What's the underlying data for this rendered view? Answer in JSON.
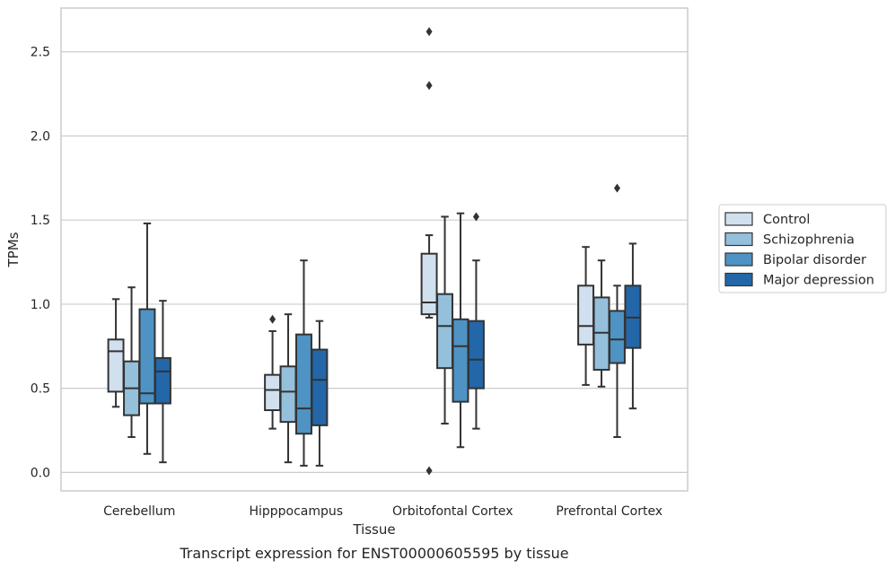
{
  "chart_data": {
    "type": "box",
    "title": "",
    "caption": "Transcript expression for ENST00000605595 by tissue",
    "xlabel": "Tissue",
    "ylabel": "TPMs",
    "ylim": [
      -0.11,
      2.76
    ],
    "yticks": [
      "0.0",
      "0.5",
      "1.0",
      "1.5",
      "2.0",
      "2.5"
    ],
    "ytick_values": [
      0,
      0.5,
      1.0,
      1.5,
      2.0,
      2.5
    ],
    "grid": "horizontal",
    "legend_position": "right",
    "categories": [
      "Cerebellum",
      "Hipppocampus",
      "Orbitofontal Cortex",
      "Prefrontal Cortex"
    ],
    "series": [
      {
        "name": "Control",
        "color": "#d1e0ef",
        "boxes": [
          {
            "whislo": 0.39,
            "q1": 0.48,
            "med": 0.72,
            "q3": 0.79,
            "whishi": 1.03,
            "fliers": []
          },
          {
            "whislo": 0.26,
            "q1": 0.37,
            "med": 0.49,
            "q3": 0.58,
            "whishi": 0.84,
            "fliers": [
              0.91
            ]
          },
          {
            "whislo": 0.92,
            "q1": 0.94,
            "med": 1.01,
            "q3": 1.3,
            "whishi": 1.41,
            "fliers": [
              2.62,
              2.3,
              0.01
            ]
          },
          {
            "whislo": 0.52,
            "q1": 0.76,
            "med": 0.87,
            "q3": 1.11,
            "whishi": 1.34,
            "fliers": []
          }
        ]
      },
      {
        "name": "Schizophrenia",
        "color": "#94c0db",
        "boxes": [
          {
            "whislo": 0.21,
            "q1": 0.34,
            "med": 0.5,
            "q3": 0.66,
            "whishi": 1.1,
            "fliers": []
          },
          {
            "whislo": 0.06,
            "q1": 0.3,
            "med": 0.48,
            "q3": 0.63,
            "whishi": 0.94,
            "fliers": []
          },
          {
            "whislo": 0.29,
            "q1": 0.62,
            "med": 0.87,
            "q3": 1.06,
            "whishi": 1.52,
            "fliers": []
          },
          {
            "whislo": 0.51,
            "q1": 0.61,
            "med": 0.83,
            "q3": 1.04,
            "whishi": 1.26,
            "fliers": []
          }
        ]
      },
      {
        "name": "Bipolar disorder",
        "color": "#4e93c4",
        "boxes": [
          {
            "whislo": 0.11,
            "q1": 0.41,
            "med": 0.47,
            "q3": 0.97,
            "whishi": 1.48,
            "fliers": []
          },
          {
            "whislo": 0.04,
            "q1": 0.23,
            "med": 0.38,
            "q3": 0.82,
            "whishi": 1.26,
            "fliers": []
          },
          {
            "whislo": 0.15,
            "q1": 0.42,
            "med": 0.75,
            "q3": 0.91,
            "whishi": 1.54,
            "fliers": []
          },
          {
            "whislo": 0.21,
            "q1": 0.65,
            "med": 0.79,
            "q3": 0.96,
            "whishi": 1.11,
            "fliers": [
              1.69
            ]
          }
        ]
      },
      {
        "name": "Major depression",
        "color": "#2367a8",
        "boxes": [
          {
            "whislo": 0.06,
            "q1": 0.41,
            "med": 0.6,
            "q3": 0.68,
            "whishi": 1.02,
            "fliers": []
          },
          {
            "whislo": 0.04,
            "q1": 0.28,
            "med": 0.55,
            "q3": 0.73,
            "whishi": 0.9,
            "fliers": []
          },
          {
            "whislo": 0.26,
            "q1": 0.5,
            "med": 0.67,
            "q3": 0.9,
            "whishi": 1.26,
            "fliers": [
              1.52
            ]
          },
          {
            "whislo": 0.38,
            "q1": 0.74,
            "med": 0.92,
            "q3": 1.11,
            "whishi": 1.36,
            "fliers": []
          }
        ]
      }
    ]
  }
}
